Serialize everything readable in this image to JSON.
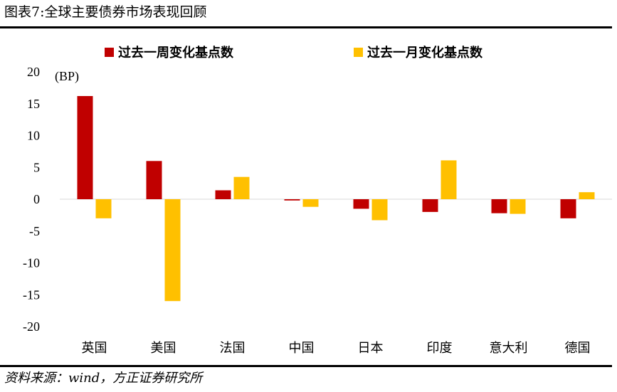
{
  "header": {
    "title": "图表7:全球主要债券市场表现回顾"
  },
  "footer": {
    "source": "资料来源：wind，方正证券研究所"
  },
  "chart_data": {
    "type": "bar",
    "unit_label": "(BP)",
    "categories": [
      "英国",
      "美国",
      "法国",
      "中国",
      "日本",
      "印度",
      "意大利",
      "德国"
    ],
    "series": [
      {
        "name": "过去一周变化基点数",
        "color": "#C00000",
        "values": [
          16.2,
          6.0,
          1.4,
          -0.2,
          -1.5,
          -2.0,
          -2.2,
          -3.0
        ]
      },
      {
        "name": "过去一月变化基点数",
        "color": "#FFC000",
        "values": [
          -3.0,
          -16.0,
          3.5,
          -1.2,
          -3.3,
          6.1,
          -2.3,
          1.1
        ]
      }
    ],
    "ylim": [
      -20,
      20
    ],
    "yticks": [
      20,
      15,
      10,
      5,
      0,
      -5,
      -10,
      -15,
      -20
    ],
    "grid": false,
    "legend": "top"
  }
}
